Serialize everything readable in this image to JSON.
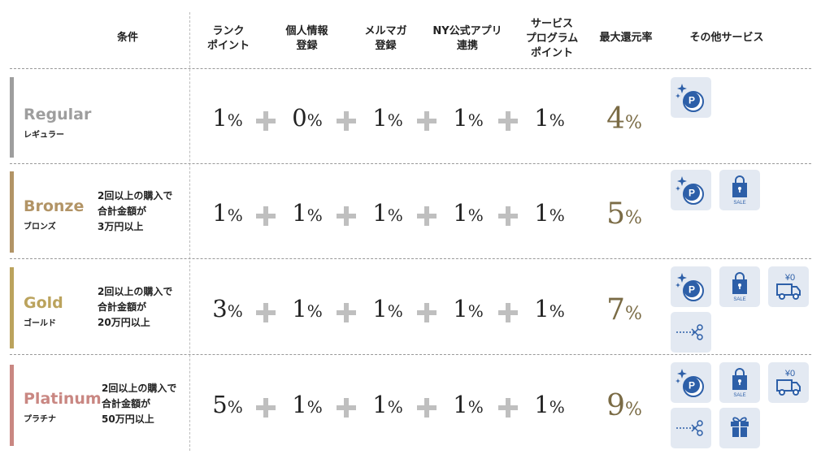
{
  "headers": {
    "condition": "条件",
    "rank_points": [
      "ランク",
      "ポイント"
    ],
    "personal_info": [
      "個人情報",
      "登録"
    ],
    "mail_magazine": [
      "メルマガ",
      "登録"
    ],
    "ny_app": [
      "NY公式アプリ",
      "連携"
    ],
    "service_program": [
      "サービス",
      "プログラム",
      "ポイント"
    ],
    "max_rate": "最大還元率",
    "other_services": "その他サービス"
  },
  "percent_unit": "%",
  "colors": {
    "regular": "#9e9e9e",
    "bronze": "#b29466",
    "gold": "#bba35d",
    "platinum": "#c98782",
    "max_rate": "#7a6b45",
    "plus": "#bfbfbf",
    "icon_bg": "#e3e9f2",
    "icon_blue": "#2d5fa8"
  },
  "ranks": [
    {
      "name": "Regular",
      "sub": "レギュラー",
      "condition": [],
      "values": [
        "1",
        "0",
        "1",
        "1",
        "1"
      ],
      "max": "4",
      "services": [
        "point-icon"
      ]
    },
    {
      "name": "Bronze",
      "sub": "ブロンズ",
      "condition": [
        "2回以上の購入で",
        "合計金額が",
        "3万円以上"
      ],
      "values": [
        "1",
        "1",
        "1",
        "1",
        "1"
      ],
      "max": "5",
      "services": [
        "point-icon",
        "sale-bag-icon"
      ]
    },
    {
      "name": "Gold",
      "sub": "ゴールド",
      "condition": [
        "2回以上の購入で",
        "合計金額が",
        "20万円以上"
      ],
      "values": [
        "3",
        "1",
        "1",
        "1",
        "1"
      ],
      "max": "7",
      "services": [
        "point-icon",
        "sale-bag-icon",
        "free-shipping-icon",
        "coupon-icon"
      ]
    },
    {
      "name": "Platinum",
      "sub": "プラチナ",
      "condition": [
        "2回以上の購入で",
        "合計金額が",
        "50万円以上"
      ],
      "values": [
        "5",
        "1",
        "1",
        "1",
        "1"
      ],
      "max": "9",
      "services": [
        "point-icon",
        "sale-bag-icon",
        "free-shipping-icon",
        "coupon-icon",
        "gift-icon"
      ]
    }
  ],
  "icon_text": {
    "point": "P",
    "sale": "SALE",
    "shipping": "¥0"
  }
}
